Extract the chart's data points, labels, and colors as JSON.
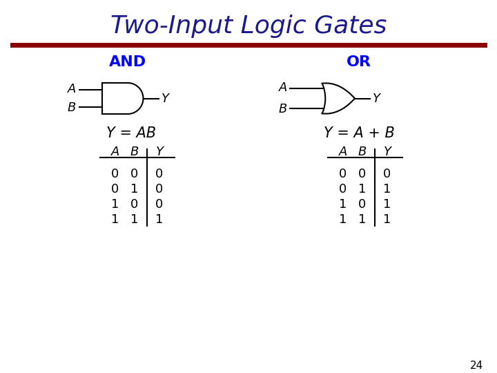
{
  "title": "Two-Input Logic Gates",
  "title_color": "#1a1a8c",
  "title_fontsize": 26,
  "separator_color": "#8b0000",
  "and_label": "AND",
  "or_label": "OR",
  "gate_label_color": "#0000ff",
  "gate_label_fontsize": 16,
  "and_equation": "Y = AB",
  "or_equation": "Y = A + B",
  "equation_fontsize": 15,
  "table_header": [
    "A",
    "B",
    "Y"
  ],
  "and_table": [
    [
      0,
      0,
      0
    ],
    [
      0,
      1,
      0
    ],
    [
      1,
      0,
      0
    ],
    [
      1,
      1,
      1
    ]
  ],
  "or_table": [
    [
      0,
      0,
      0
    ],
    [
      0,
      1,
      1
    ],
    [
      1,
      0,
      1
    ],
    [
      1,
      1,
      1
    ]
  ],
  "page_number": "24",
  "bg_color": "#ffffff",
  "text_color": "#000000"
}
